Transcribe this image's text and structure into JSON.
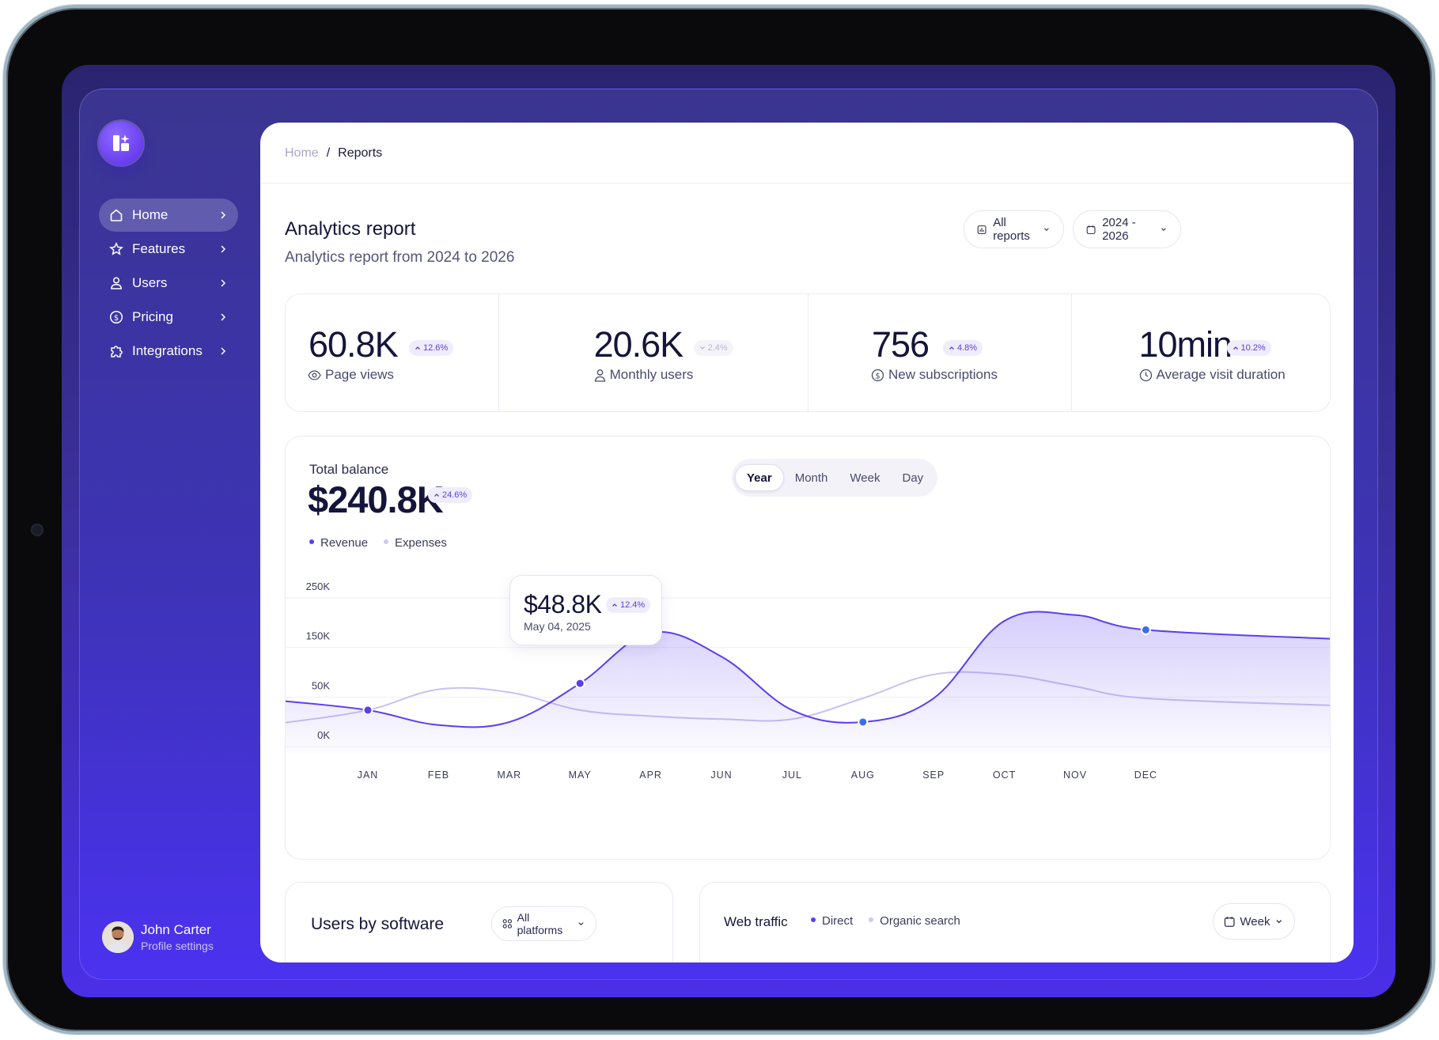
{
  "sidebar": {
    "items": [
      {
        "label": "Home",
        "icon": "home-icon",
        "active": true
      },
      {
        "label": "Features",
        "icon": "star-icon",
        "active": false
      },
      {
        "label": "Users",
        "icon": "user-icon",
        "active": false
      },
      {
        "label": "Pricing",
        "icon": "dollar-circle-icon",
        "active": false
      },
      {
        "label": "Integrations",
        "icon": "puzzle-icon",
        "active": false
      }
    ],
    "profile": {
      "name": "John Carter",
      "subtitle": "Profile settings"
    }
  },
  "breadcrumb": {
    "home": "Home",
    "separator": "/",
    "current": "Reports"
  },
  "header": {
    "title": "Analytics report",
    "subtitle": "Analytics report from 2024 to 2026",
    "reports_filter": "All reports",
    "date_filter": "2024 - 2026"
  },
  "stats": [
    {
      "value": "60.8K",
      "change": "12.6%",
      "direction": "up",
      "label": "Page views",
      "icon": "eye-icon"
    },
    {
      "value": "20.6K",
      "change": "2.4%",
      "direction": "down",
      "label": "Monthly users",
      "icon": "user-icon"
    },
    {
      "value": "756",
      "change": "4.8%",
      "direction": "up",
      "label": "New subscriptions",
      "icon": "dollar-circle-icon"
    },
    {
      "value": "10min",
      "change": "10.2%",
      "direction": "up",
      "label": "Average visit duration",
      "icon": "clock-icon"
    }
  ],
  "balance": {
    "label": "Total balance",
    "value": "$240.8K",
    "change": "24.6%",
    "legend": [
      "Revenue",
      "Expenses"
    ],
    "periods": [
      "Year",
      "Month",
      "Week",
      "Day"
    ],
    "selected_period": "Year",
    "tooltip": {
      "value": "$48.8K",
      "change": "12.4%",
      "date": "May 04, 2025"
    }
  },
  "chart_data": {
    "type": "area",
    "categories": [
      "JAN",
      "FEB",
      "MAR",
      "MAY",
      "APR",
      "JUN",
      "JUL",
      "AUG",
      "SEP",
      "OCT",
      "NOV",
      "DEC"
    ],
    "y_ticks": [
      "250K",
      "150K",
      "50K",
      "0K"
    ],
    "ylim": [
      0,
      250
    ],
    "series": [
      {
        "name": "Revenue",
        "color": "#5b3ef0",
        "values": [
          40,
          15,
          20,
          85,
          170,
          130,
          40,
          20,
          60,
          190,
          200,
          175
        ]
      },
      {
        "name": "Expenses",
        "color": "#c9c2f1",
        "values": [
          40,
          75,
          70,
          40,
          30,
          25,
          25,
          60,
          100,
          100,
          80,
          60
        ]
      }
    ],
    "markers": [
      "JAN",
      "MAY",
      "AUG",
      "DEC"
    ],
    "grid": true
  },
  "users_by_software": {
    "title": "Users by software",
    "filter": "All platforms"
  },
  "web_traffic": {
    "title": "Web traffic",
    "legend": [
      "Direct",
      "Organic search"
    ],
    "filter": "Week"
  },
  "colors": {
    "accent": "#5b3ef0",
    "navy": "#15143a",
    "badge_bg": "#efedfc"
  }
}
